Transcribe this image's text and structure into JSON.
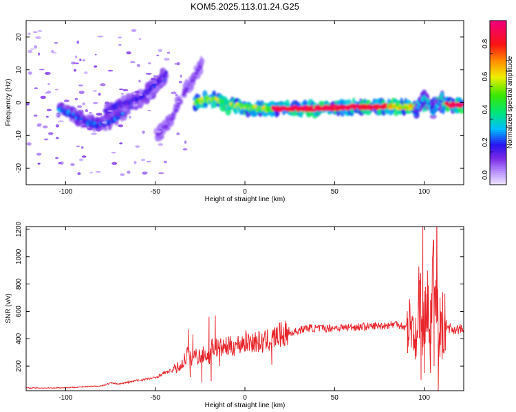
{
  "title": "KOM5.2025.113.01.24.G25",
  "colors": {
    "line": "#e8252b",
    "axis": "#000000"
  },
  "colorbar": {
    "label": "Normalized spectral amplitude",
    "range": [
      0,
      1
    ],
    "ticks": [
      "0.0",
      "0.2",
      "0.4",
      "0.6",
      "0.8"
    ],
    "tick_values": [
      0.0,
      0.2,
      0.4,
      0.6,
      0.8
    ]
  },
  "chart_data": [
    {
      "type": "heatmap",
      "xlabel": "Height of straight line (km)",
      "ylabel": "Frequency (Hz)",
      "xlim": [
        -122,
        122
      ],
      "ylim": [
        -25,
        25
      ],
      "xticks": [
        -100,
        -50,
        0,
        50,
        100
      ],
      "xtick_labels": [
        "-100",
        "-50",
        "0",
        "50",
        "100"
      ],
      "yticks": [
        -20,
        -10,
        0,
        10,
        20
      ],
      "ytick_labels": [
        "-20",
        "-10",
        "0",
        "10",
        "20"
      ],
      "colormap": "rainbow",
      "ridges": [
        {
          "x": [
            -104,
            -95,
            -88,
            -82,
            -76,
            -70,
            -64,
            -58,
            -53,
            -48,
            -44
          ],
          "y": [
            -2,
            -4,
            -6,
            -7,
            -6,
            -4,
            -1,
            1,
            3,
            6,
            8
          ],
          "amp": 0.28
        },
        {
          "x": [
            -78,
            -72,
            -66,
            -60,
            -55,
            -51,
            -47,
            -44
          ],
          "y": [
            -3,
            -1,
            0,
            1,
            3,
            5,
            7,
            9
          ],
          "amp": 0.22
        },
        {
          "x": [
            -49,
            -44,
            -40,
            -36
          ],
          "y": [
            -10,
            -7,
            -4,
            1
          ],
          "amp": 0.15
        },
        {
          "x": [
            -34,
            -30,
            -27,
            -24
          ],
          "y": [
            3,
            6,
            9,
            12
          ],
          "amp": 0.15
        },
        {
          "x": [
            -28,
            -22,
            -16,
            -10,
            -4,
            2,
            10,
            20,
            30,
            40,
            50,
            60,
            70,
            80,
            90,
            95,
            100,
            105,
            110,
            115,
            122
          ],
          "y": [
            0,
            1,
            1,
            -1,
            -1,
            -1.5,
            -2,
            -1.8,
            -1.8,
            -1.8,
            -1.5,
            -1.3,
            -1.3,
            -1.2,
            -1.3,
            -1.5,
            0,
            -1,
            -0.5,
            -0.8,
            -0.8
          ],
          "amp": 0.9
        },
        {
          "x": [
            95,
            100,
            105,
            110
          ],
          "y": [
            -3,
            2,
            -3,
            2
          ],
          "amp": 0.35
        }
      ]
    },
    {
      "type": "line",
      "xlabel": "Height of straight line (km)",
      "ylabel": "SNR (v/v)",
      "xlim": [
        -122,
        122
      ],
      "ylim": [
        20,
        1220
      ],
      "xticks": [
        -100,
        -50,
        0,
        50,
        100
      ],
      "xtick_labels": [
        "-100",
        "-50",
        "0",
        "50",
        "100"
      ],
      "yticks": [
        200,
        400,
        600,
        800,
        1000,
        1200
      ],
      "ytick_labels": [
        "200",
        "400",
        "600",
        "800",
        "1000",
        "1200"
      ],
      "series": [
        {
          "x": [
            -122,
            -110,
            -100,
            -90,
            -80,
            -75,
            -70,
            -60,
            -50,
            -45,
            -40,
            -35,
            -32,
            -30,
            -28,
            -25,
            -22,
            -20,
            -18,
            -15,
            -10,
            -5,
            0,
            5,
            10,
            15,
            20,
            25,
            30,
            35,
            40,
            50,
            60,
            70,
            80,
            85,
            90,
            93,
            96,
            97,
            98,
            99,
            100,
            101,
            103,
            105,
            106,
            107,
            108,
            110,
            115,
            122
          ],
          "y": [
            40,
            40,
            42,
            48,
            55,
            75,
            70,
            95,
            115,
            150,
            170,
            210,
            300,
            250,
            280,
            270,
            290,
            260,
            350,
            330,
            340,
            350,
            380,
            380,
            370,
            400,
            430,
            440,
            460,
            480,
            475,
            480,
            485,
            490,
            500,
            510,
            480,
            520,
            350,
            680,
            780,
            300,
            520,
            800,
            400,
            850,
            600,
            950,
            300,
            520,
            470,
            470
          ],
          "spikes": [
            {
              "x": -31.5,
              "y": 470
            },
            {
              "x": -30.5,
              "y": 120
            },
            {
              "x": -29.0,
              "y": 430
            },
            {
              "x": -24.0,
              "y": 80
            },
            {
              "x": -20.0,
              "y": 560
            },
            {
              "x": -18.8,
              "y": 90
            },
            {
              "x": -16.5,
              "y": 570
            },
            {
              "x": -14.0,
              "y": 200
            },
            {
              "x": 15.0,
              "y": 210
            },
            {
              "x": 90.8,
              "y": 550
            },
            {
              "x": 97.5,
              "y": 740
            },
            {
              "x": 98.2,
              "y": 100
            },
            {
              "x": 99.2,
              "y": 1220
            },
            {
              "x": 100.0,
              "y": 150
            },
            {
              "x": 101.8,
              "y": 900
            },
            {
              "x": 103.5,
              "y": 150
            },
            {
              "x": 104.5,
              "y": 920
            },
            {
              "x": 105.5,
              "y": 200
            },
            {
              "x": 106.5,
              "y": 800
            },
            {
              "x": 107.8,
              "y": 20
            },
            {
              "x": 108.8,
              "y": 700
            },
            {
              "x": 110.0,
              "y": 250
            },
            {
              "x": 111.5,
              "y": 600
            }
          ]
        }
      ]
    }
  ]
}
